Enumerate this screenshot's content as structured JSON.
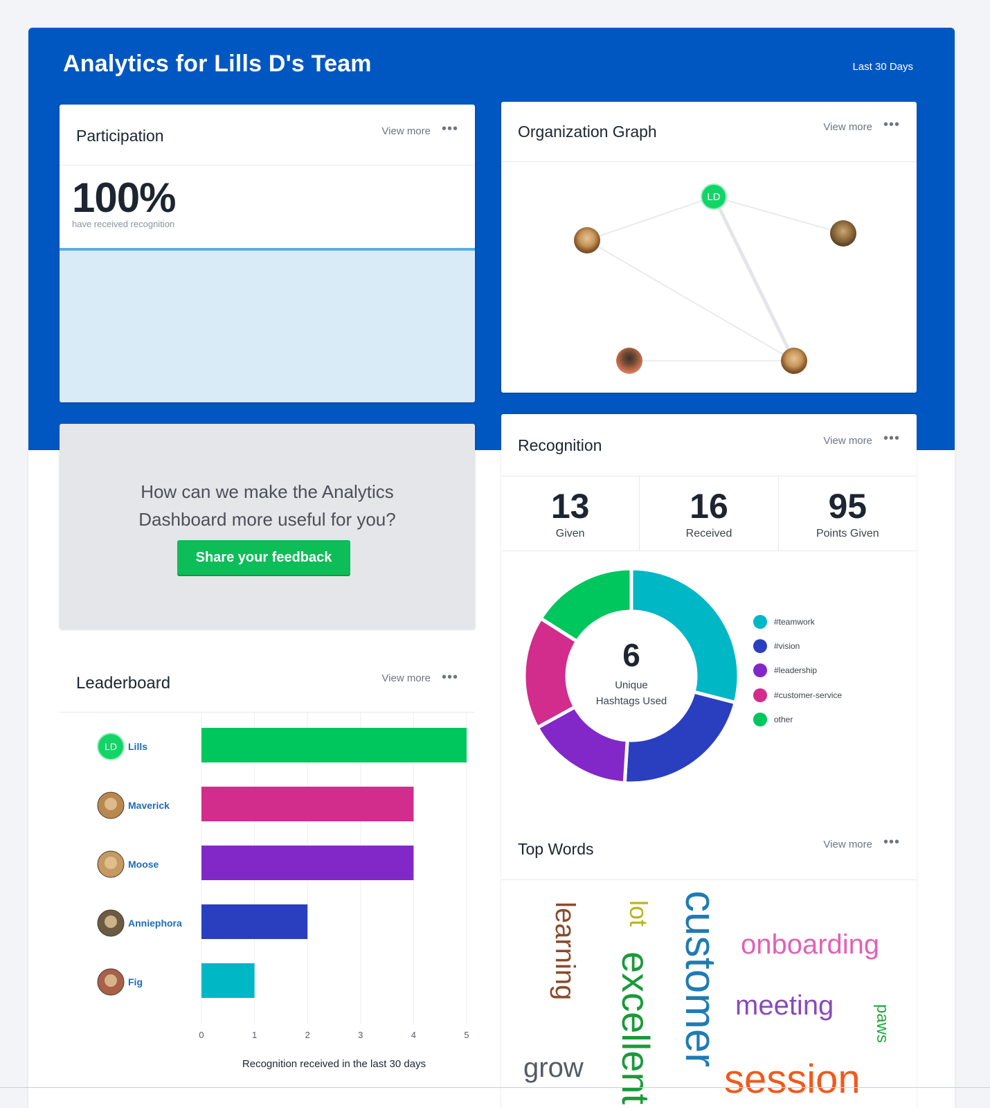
{
  "header": {
    "title": "Analytics for Lills D's Team",
    "range": "Last 30 Days"
  },
  "common": {
    "view_more": "View more",
    "menu": "•••"
  },
  "participation": {
    "title": "Participation",
    "value": "100%",
    "subtitle": "have received recognition",
    "fraction": 1.0
  },
  "org_graph": {
    "title": "Organization Graph",
    "nodes": [
      {
        "id": "ld",
        "label": "LD",
        "icon": "initials-avatar"
      },
      {
        "id": "a",
        "icon": "dog-avatar"
      },
      {
        "id": "b",
        "icon": "dog-avatar"
      },
      {
        "id": "c",
        "icon": "dog-avatar"
      },
      {
        "id": "d",
        "icon": "dog-avatar"
      }
    ]
  },
  "feedback": {
    "line1": "How can we make the Analytics",
    "line2": "Dashboard more useful for you?",
    "button": "Share your feedback"
  },
  "leaderboard": {
    "title": "Leaderboard",
    "xlabel": "Recognition received in the last 30 days",
    "ticks": [
      "0",
      "1",
      "2",
      "3",
      "4",
      "5"
    ],
    "people": [
      {
        "name": "Lills",
        "avatar": "LD",
        "value": 5,
        "color": "#00c65e"
      },
      {
        "name": "Maverick",
        "avatar": "",
        "value": 4,
        "color": "#d22c8c"
      },
      {
        "name": "Moose",
        "avatar": "",
        "value": 4,
        "color": "#8328c8"
      },
      {
        "name": "Anniephora",
        "avatar": "",
        "value": 2,
        "color": "#2a3fbf"
      },
      {
        "name": "Fig",
        "avatar": "",
        "value": 1,
        "color": "#00b7c6"
      }
    ]
  },
  "recognition": {
    "title": "Recognition",
    "stats": [
      {
        "value": "13",
        "label": "Given"
      },
      {
        "value": "16",
        "label": "Received"
      },
      {
        "value": "95",
        "label": "Points Given"
      }
    ],
    "center_value": "6",
    "center_label_1": "Unique",
    "center_label_2": "Hashtags Used",
    "legend": [
      {
        "label": "#teamwork",
        "color": "#00b7c6"
      },
      {
        "label": "#vision",
        "color": "#2a3fbf"
      },
      {
        "label": "#leadership",
        "color": "#8328c8"
      },
      {
        "label": "#customer-service",
        "color": "#d22c8c"
      },
      {
        "label": "other",
        "color": "#00c65e"
      }
    ]
  },
  "chart_data": [
    {
      "type": "bar",
      "orientation": "horizontal",
      "categories": [
        "Lills",
        "Maverick",
        "Moose",
        "Anniephora",
        "Fig"
      ],
      "values": [
        5,
        4,
        4,
        2,
        1
      ],
      "xlabel": "Recognition received in the last 30 days",
      "xlim": [
        0,
        5
      ]
    },
    {
      "type": "pie",
      "donut": true,
      "labels": [
        "#teamwork",
        "#vision",
        "#leadership",
        "#customer-service",
        "other"
      ],
      "values": [
        0.29,
        0.22,
        0.16,
        0.17,
        0.16
      ]
    }
  ],
  "top_words": {
    "title": "Top Words",
    "words": [
      {
        "text": "learning",
        "color": "#8b4a2b"
      },
      {
        "text": "lot",
        "color": "#b8b521"
      },
      {
        "text": "excellent",
        "color": "#1a9a3a"
      },
      {
        "text": "customer",
        "color": "#1f7bb3"
      },
      {
        "text": "onboarding",
        "color": "#e260b8"
      },
      {
        "text": "meeting",
        "color": "#8a49b8"
      },
      {
        "text": "paws",
        "color": "#23a83d"
      },
      {
        "text": "grow",
        "color": "#555b63"
      },
      {
        "text": "session",
        "color": "#f05a1c"
      }
    ]
  }
}
